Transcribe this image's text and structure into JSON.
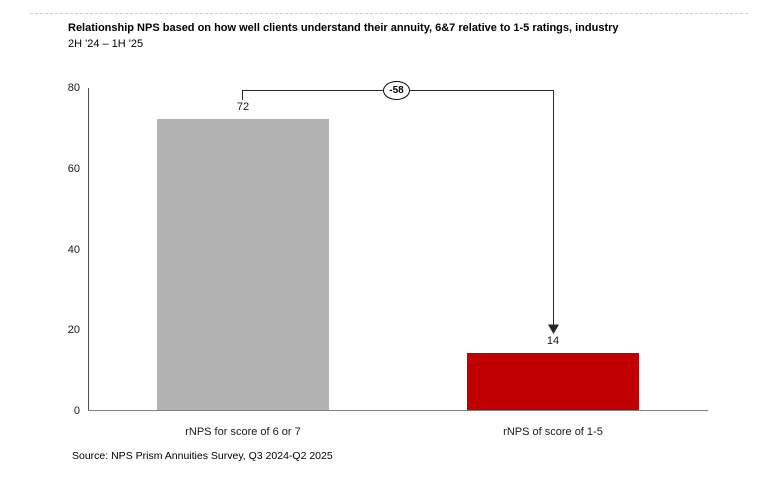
{
  "header": {
    "title": "Relationship NPS based on how well clients understand their annuity, 6&7 relative to 1-5 ratings, industry",
    "subtitle": "2H '24 – 1H '25"
  },
  "annotation": {
    "delta_label": "-58"
  },
  "footer": {
    "source": "Source: NPS Prism Annuities Survey, Q3 2024-Q2 2025"
  },
  "colors": {
    "bar_gray": "#b3b3b3",
    "bar_red": "#c00000",
    "axis": "#4d4d4d",
    "baseline": "#7f7f7f",
    "connector": "#262626"
  },
  "chart_data": {
    "type": "bar",
    "title": "Relationship NPS based on how well clients understand their annuity, 6&7 relative to 1-5 ratings, industry",
    "subtitle": "2H '24 – 1H '25",
    "categories": [
      "rNPS for score of 6 or 7",
      "rNPS of score of 1-5"
    ],
    "values": [
      72,
      14
    ],
    "value_labels": [
      "72",
      "14"
    ],
    "bar_colors": [
      "#b3b3b3",
      "#c00000"
    ],
    "xlabel": "",
    "ylabel": "",
    "ylim": [
      0,
      80
    ],
    "yticks": [
      0,
      20,
      40,
      60,
      80
    ],
    "grid": false,
    "legend": false,
    "annotation": {
      "text": "-58",
      "type": "difference-arrow",
      "from": "rNPS for score of 6 or 7",
      "to": "rNPS of score of 1-5"
    }
  }
}
